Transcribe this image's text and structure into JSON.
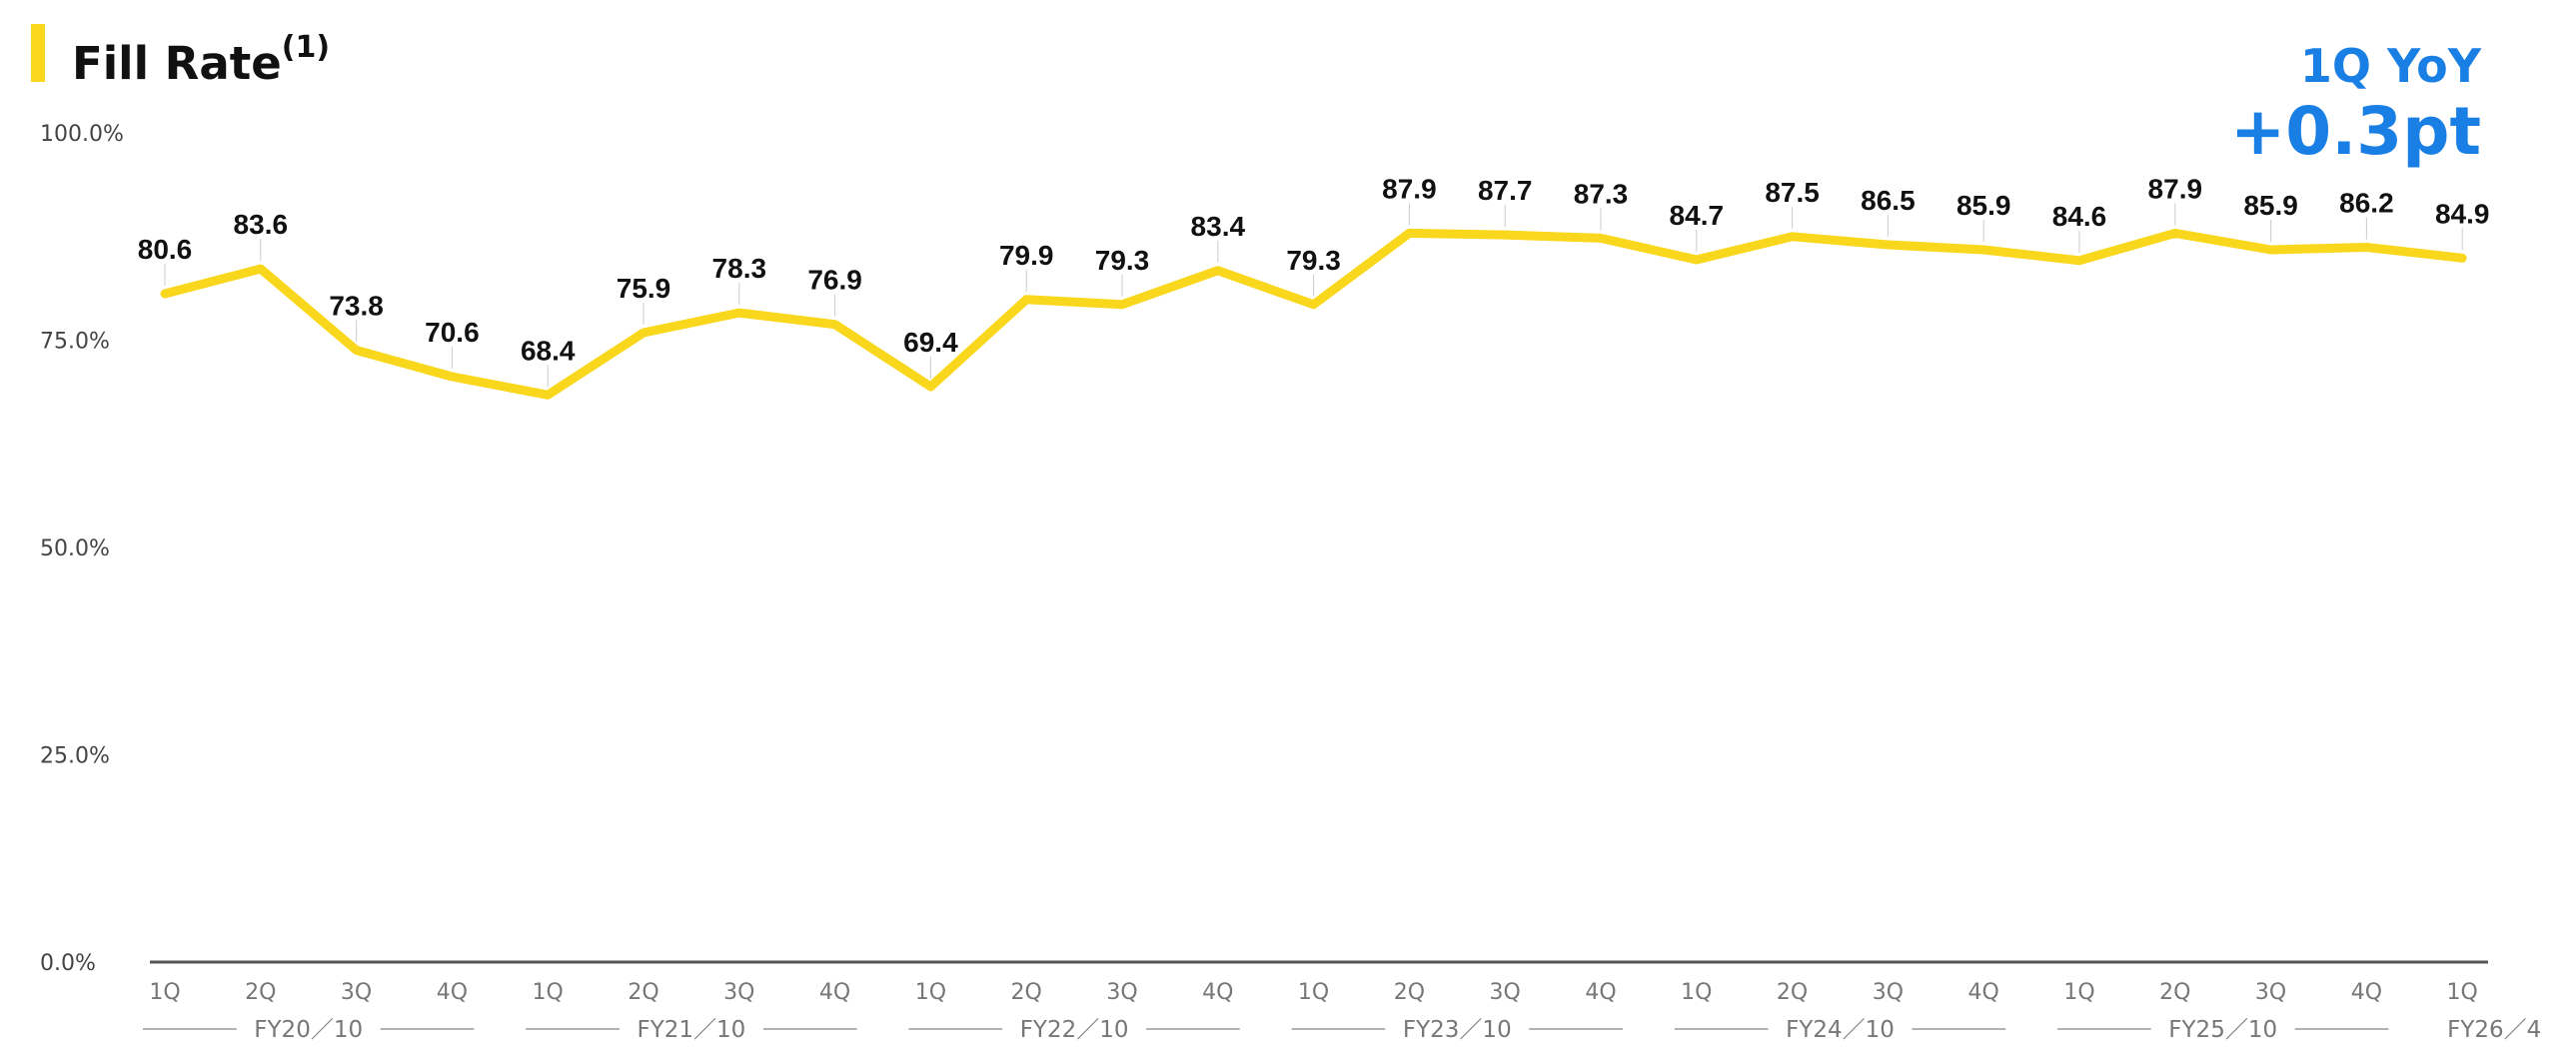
{
  "header": {
    "title": "Fill Rate",
    "title_note": "(1)",
    "yoy_label": "1Q YoY",
    "yoy_value": "+0.3pt"
  },
  "colors": {
    "accent": "#F9D71C",
    "line": "#F9D71C",
    "yoy": "#1A7FE5",
    "axis": "#555555",
    "text": "#111111"
  },
  "chart_data": {
    "type": "line",
    "title": "Fill Rate(1)",
    "xlabel": "",
    "ylabel": "",
    "ylim": [
      0,
      100
    ],
    "grid": false,
    "yticks": [
      {
        "value": 0,
        "label": "0.0%"
      },
      {
        "value": 25,
        "label": "25.0%"
      },
      {
        "value": 50,
        "label": "50.0%"
      },
      {
        "value": 75,
        "label": "75.0%"
      },
      {
        "value": 100,
        "label": "100.0%"
      }
    ],
    "quarters": [
      "1Q",
      "2Q",
      "3Q",
      "4Q",
      "1Q",
      "2Q",
      "3Q",
      "4Q",
      "1Q",
      "2Q",
      "3Q",
      "4Q",
      "1Q",
      "2Q",
      "3Q",
      "4Q",
      "1Q",
      "2Q",
      "3Q",
      "4Q",
      "1Q",
      "2Q",
      "3Q",
      "4Q",
      "1Q"
    ],
    "fiscal_years": [
      {
        "label": "FY20／10",
        "start": 0,
        "end": 3
      },
      {
        "label": "FY21／10",
        "start": 4,
        "end": 7
      },
      {
        "label": "FY22／10",
        "start": 8,
        "end": 11
      },
      {
        "label": "FY23／10",
        "start": 12,
        "end": 15
      },
      {
        "label": "FY24／10",
        "start": 16,
        "end": 19
      },
      {
        "label": "FY25／10",
        "start": 20,
        "end": 23
      },
      {
        "label": "FY26／4",
        "start": 24,
        "end": 24
      }
    ],
    "series": [
      {
        "name": "Fill Rate",
        "values": [
          80.6,
          83.6,
          73.8,
          70.6,
          68.4,
          75.9,
          78.3,
          76.9,
          69.4,
          79.9,
          79.3,
          83.4,
          79.3,
          87.9,
          87.7,
          87.3,
          84.7,
          87.5,
          86.5,
          85.9,
          84.6,
          87.9,
          85.9,
          86.2,
          84.9
        ],
        "labels": [
          "80.6",
          "83.6",
          "73.8",
          "70.6",
          "68.4",
          "75.9",
          "78.3",
          "76.9",
          "69.4",
          "79.9",
          "79.3",
          "83.4",
          "79.3",
          "87.9",
          "87.7",
          "87.3",
          "84.7",
          "87.5",
          "86.5",
          "85.9",
          "84.6",
          "87.9",
          "85.9",
          "86.2",
          "84.9"
        ]
      }
    ]
  }
}
